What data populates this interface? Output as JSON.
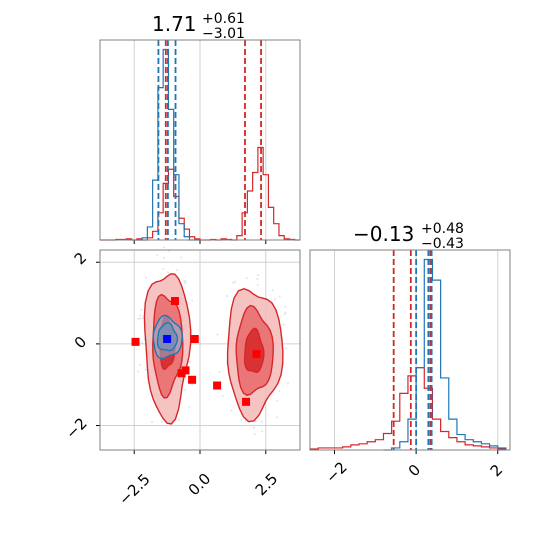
{
  "colors": {
    "red": "#d62728",
    "blue": "#1f77b4",
    "red_fill_outer": "#f4b8b9",
    "red_fill_mid": "#e8696b",
    "red_fill_inner": "#d62728",
    "blue_fill": "#86b6d9",
    "grid": "#d0d0d0",
    "frame": "#808080",
    "marker_red": "#ff0000",
    "marker_blue": "#0000ff"
  },
  "chart_data": [
    {
      "type": "histogram",
      "panel": "top-left",
      "title": {
        "main": "1.71",
        "sup": "+0.61",
        "sub": "−3.01"
      },
      "xlim": [
        -3.8,
        3.8
      ],
      "grid": true,
      "series": [
        {
          "color": "#d62728",
          "style": "step",
          "edges": [
            -3.8,
            -3.6,
            -3.4,
            -3.2,
            -3.0,
            -2.8,
            -2.6,
            -2.4,
            -2.2,
            -2.0,
            -1.8,
            -1.6,
            -1.4,
            -1.2,
            -1.0,
            -0.8,
            -0.6,
            -0.4,
            -0.2,
            0.0,
            0.2,
            0.4,
            0.6,
            0.8,
            1.0,
            1.2,
            1.4,
            1.6,
            1.8,
            2.0,
            2.2,
            2.4,
            2.6,
            2.8,
            3.0,
            3.2,
            3.4,
            3.6,
            3.8
          ],
          "counts": [
            0,
            0,
            0,
            0.5,
            0.5,
            1,
            0,
            1,
            0,
            2,
            8,
            25,
            52,
            65,
            40,
            20,
            10,
            3,
            1,
            0,
            0,
            0.5,
            0,
            1,
            0.5,
            0,
            4,
            25,
            45,
            62,
            85,
            60,
            30,
            15,
            4,
            1,
            0.5,
            0
          ],
          "quantile_lines": [
            -1.3,
            1.71,
            2.32
          ]
        },
        {
          "color": "#1f77b4",
          "style": "step",
          "edges": [
            -2.4,
            -2.2,
            -2.0,
            -1.8,
            -1.6,
            -1.4,
            -1.2,
            -1.0,
            -0.8,
            -0.6,
            -0.4,
            -0.2,
            0.0
          ],
          "counts": [
            0,
            2,
            12,
            55,
            140,
            175,
            120,
            60,
            15,
            3,
            0,
            0
          ],
          "quantile_lines": [
            -1.58,
            -1.22,
            -0.93
          ]
        }
      ]
    },
    {
      "type": "contour",
      "panel": "bottom-left",
      "xlim": [
        -3.8,
        3.8
      ],
      "ylim": [
        -2.6,
        2.3
      ],
      "grid": true,
      "x_ticks": [
        "−2.5",
        "0.0",
        "2.5"
      ],
      "y_ticks": [
        "2",
        "0",
        "−2"
      ],
      "regions": [
        {
          "color": "#d62728",
          "levels": 3,
          "cx": -1.25,
          "cy": 0.0,
          "rx": 0.85,
          "ry": 1.8
        },
        {
          "color": "#d62728",
          "levels": 3,
          "cx": 2.05,
          "cy": -0.2,
          "rx": 1.05,
          "ry": 1.55
        },
        {
          "color": "#1f77b4",
          "levels": 2,
          "cx": -1.25,
          "cy": 0.15,
          "rx": 0.55,
          "ry": 0.5
        }
      ],
      "markers_red": [
        [
          -2.45,
          0.05
        ],
        [
          -0.95,
          1.05
        ],
        [
          -0.2,
          0.12
        ],
        [
          -0.55,
          -0.65
        ],
        [
          -0.7,
          -0.72
        ],
        [
          -0.3,
          -0.88
        ],
        [
          0.65,
          -1.02
        ],
        [
          2.15,
          -0.25
        ],
        [
          1.75,
          -1.42
        ]
      ],
      "markers_blue": [
        [
          -1.25,
          0.12
        ]
      ]
    },
    {
      "type": "histogram",
      "panel": "bottom-right",
      "title": {
        "main": "−0.13",
        "sup": "+0.48",
        "sub": "−0.43"
      },
      "xlim": [
        -2.6,
        2.3
      ],
      "x_ticks": [
        "−2",
        "0",
        "2"
      ],
      "grid": true,
      "series": [
        {
          "color": "#d62728",
          "style": "step",
          "edges": [
            -2.6,
            -2.4,
            -2.2,
            -2.0,
            -1.8,
            -1.6,
            -1.4,
            -1.2,
            -1.0,
            -0.8,
            -0.6,
            -0.4,
            -0.2,
            0.0,
            0.2,
            0.4,
            0.6,
            0.8,
            1.0,
            1.2,
            1.4,
            1.6,
            1.8,
            2.0,
            2.2
          ],
          "counts": [
            1,
            2,
            2,
            2,
            3,
            5,
            6,
            8,
            10,
            16,
            28,
            55,
            72,
            80,
            60,
            30,
            18,
            12,
            8,
            5,
            4,
            3,
            2,
            1
          ],
          "quantile_lines": [
            -0.55,
            -0.13,
            0.35
          ]
        },
        {
          "color": "#1f77b4",
          "style": "step",
          "edges": [
            -0.8,
            -0.6,
            -0.4,
            -0.2,
            0.0,
            0.2,
            0.4,
            0.6,
            0.8,
            1.0,
            1.2,
            1.4,
            1.6,
            1.8,
            2.0,
            2.2
          ],
          "counts": [
            0,
            2,
            8,
            30,
            80,
            185,
            165,
            70,
            30,
            15,
            10,
            8,
            6,
            4,
            2
          ],
          "quantile_lines": [
            0.0,
            0.3,
            0.38
          ]
        }
      ]
    }
  ]
}
